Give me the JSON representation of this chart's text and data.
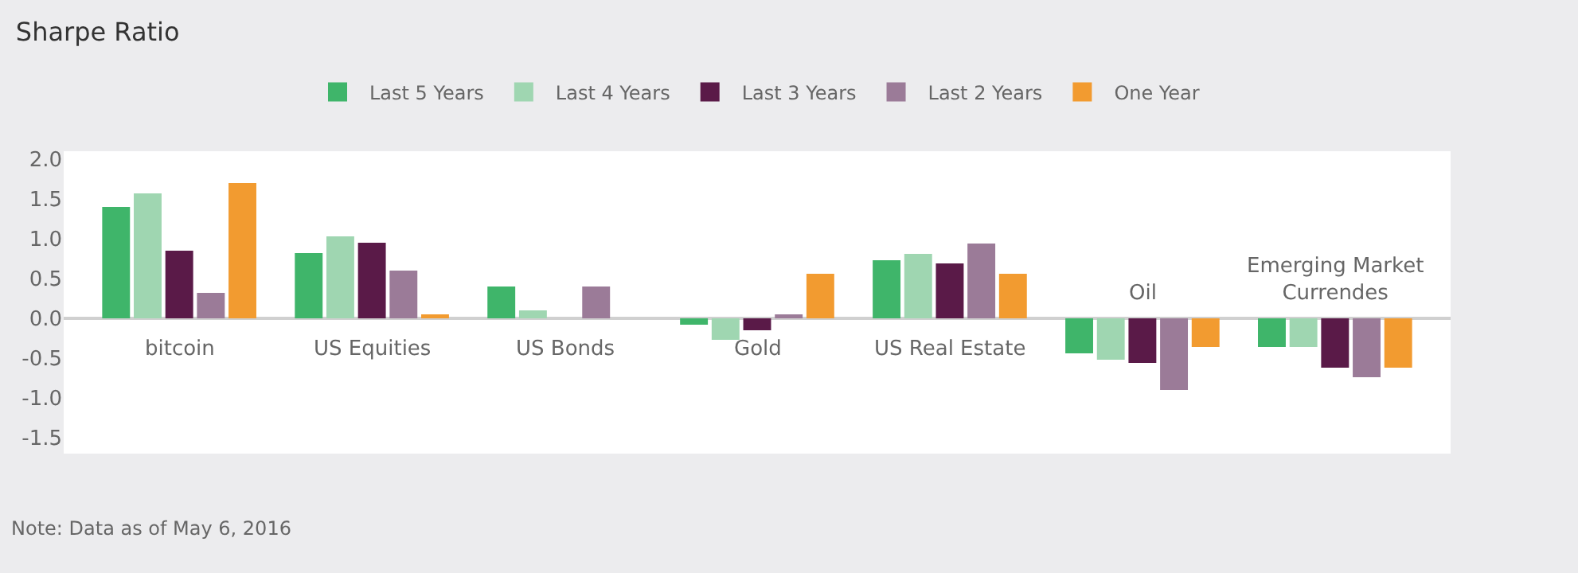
{
  "chart_data": {
    "type": "bar",
    "title": "Sharpe Ratio",
    "categories": [
      "bitcoin",
      "US Equities",
      "US Bonds",
      "Gold",
      "US Real Estate",
      "Oil",
      "Emerging Market Currendes"
    ],
    "series": [
      {
        "name": "Last 5 Years",
        "color": "#3fb56a",
        "values": [
          1.4,
          0.82,
          0.4,
          -0.08,
          0.73,
          -0.44,
          -0.36
        ]
      },
      {
        "name": "Last 4 Years",
        "color": "#9fd6b1",
        "values": [
          1.57,
          1.03,
          0.1,
          -0.27,
          0.81,
          -0.52,
          -0.36
        ]
      },
      {
        "name": "Last 3 Years",
        "color": "#5a1a48",
        "values": [
          0.85,
          0.95,
          null,
          -0.15,
          0.69,
          -0.56,
          -0.62
        ]
      },
      {
        "name": "Last 2 Years",
        "color": "#9b7b98",
        "values": [
          0.32,
          0.6,
          0.4,
          0.05,
          0.94,
          -0.9,
          -0.74
        ]
      },
      {
        "name": "One Year",
        "color": "#f29b30",
        "values": [
          1.7,
          0.05,
          null,
          0.56,
          0.56,
          -0.36,
          -0.62
        ]
      }
    ],
    "ylim": [
      -1.7,
      2.1
    ],
    "yticks": [
      {
        "value": 2.0,
        "label": "2.0"
      },
      {
        "value": 1.5,
        "label": "1.5"
      },
      {
        "value": 1.0,
        "label": "1.0"
      },
      {
        "value": 0.5,
        "label": "0.5"
      },
      {
        "value": 0.0,
        "label": "0.0"
      },
      {
        "value": -0.5,
        "label": "-0.5"
      },
      {
        "value": -1.0,
        "label": "-1.0"
      },
      {
        "value": -1.5,
        "label": "-1.5"
      }
    ],
    "legend": "top",
    "annotations": [
      "Note: Data as of May 6, 2016"
    ]
  }
}
